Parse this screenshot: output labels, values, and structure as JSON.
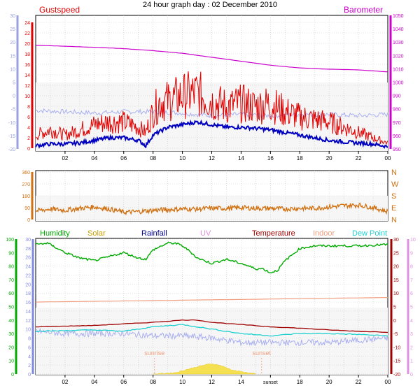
{
  "title": "24 hour graph day : 02 December 2010",
  "colors": {
    "gust": "#e00000",
    "wind": "#0000c0",
    "baro": "#cc00cc",
    "temp_trace": "#aab0f0",
    "dir": "#d07010",
    "humidity": "#00aa00",
    "solar": "#c8a000",
    "rainfall": "#000090",
    "uv": "#e090e0",
    "temperature": "#a00000",
    "indoor": "#f0a080",
    "dewpoint": "#20d0d0",
    "panel_bg": "#f6f6f6",
    "grid": "#c8c8c8"
  },
  "x_tick_labels": [
    "02",
    "04",
    "06",
    "08",
    "10",
    "12",
    "14",
    "16",
    "18",
    "20",
    "22",
    "00"
  ],
  "x_tick_labels_bottom": [
    "02",
    "04",
    "06",
    "08",
    "10",
    "12",
    "14",
    "sunset",
    "18",
    "20",
    "22",
    "00"
  ],
  "chart_data": [
    {
      "type": "line",
      "x_range_hours": [
        0,
        24
      ],
      "left_axis_label": "Gustspeed",
      "right_axis_label": "Barometer",
      "left_ticks": [
        "24",
        "22",
        "20",
        "18",
        "16",
        "14",
        "12",
        "10",
        "8",
        "6",
        "4",
        "2",
        "0"
      ],
      "left_outer_ticks": [
        "30",
        "25",
        "20",
        "15",
        "10",
        "5",
        "0",
        "-5",
        "-10",
        "-15",
        "-20"
      ],
      "right_ticks": [
        "1050",
        "1040",
        "1030",
        "1020",
        "1010",
        "1000",
        "990",
        "980",
        "970",
        "960",
        "950"
      ],
      "series": [
        {
          "name": "Barometer",
          "axis": "right",
          "x": [
            0,
            2,
            4,
            6,
            8,
            10,
            12,
            14,
            16,
            18,
            20,
            22,
            24
          ],
          "values": [
            1028,
            1027.3,
            1026.5,
            1025.5,
            1024,
            1022,
            1019,
            1016,
            1013,
            1011,
            1010,
            1009.5,
            1008
          ]
        },
        {
          "name": "Gustspeed",
          "axis": "left",
          "x": [
            0,
            1,
            2,
            3,
            4,
            5,
            6,
            7,
            7.5,
            8,
            8.5,
            9,
            10,
            11,
            12,
            13,
            14,
            15,
            16,
            17,
            18,
            19,
            20,
            21,
            22,
            23,
            24
          ],
          "values": [
            2.5,
            3.5,
            2.5,
            3.5,
            4.5,
            5,
            5,
            4,
            3,
            7,
            9,
            9,
            10,
            10.5,
            9,
            8,
            8.5,
            8,
            8.5,
            7,
            6,
            5.5,
            5,
            4,
            3,
            2,
            1
          ]
        },
        {
          "name": "Windspeed",
          "axis": "left",
          "x": [
            0,
            1,
            2,
            3,
            4,
            5,
            6,
            7,
            7.5,
            8,
            9,
            10,
            11,
            12,
            13,
            14,
            15,
            16,
            17,
            18,
            19,
            20,
            21,
            22,
            23,
            24
          ],
          "values": [
            0.5,
            0.8,
            0.8,
            1,
            1.5,
            2,
            2,
            1.5,
            0.5,
            2.5,
            4,
            4.5,
            5,
            4.5,
            4,
            4,
            3.8,
            3.5,
            3,
            2.5,
            2,
            1.5,
            1.2,
            1,
            0.8,
            0.3
          ]
        },
        {
          "name": "Temperature trace",
          "axis": "left_outer",
          "x": [
            0,
            2,
            4,
            6,
            8,
            10,
            12,
            14,
            16,
            18,
            20,
            22,
            24
          ],
          "values": [
            -5.5,
            -6,
            -6.5,
            -6,
            -6,
            -6.5,
            -7.5,
            -7,
            -7.5,
            -7,
            -7,
            -7.5,
            -7
          ]
        }
      ]
    },
    {
      "type": "line",
      "x_range_hours": [
        0,
        24
      ],
      "left_ticks": [
        "360",
        "270",
        "180",
        "90",
        "0"
      ],
      "right_labels": [
        "N",
        "W",
        "S",
        "E",
        "N"
      ],
      "series": [
        {
          "name": "Wind direction",
          "x": [
            0,
            1,
            2,
            3,
            4,
            5,
            6,
            7,
            8,
            9,
            10,
            11,
            12,
            13,
            14,
            15,
            16,
            17,
            18,
            19,
            20,
            21,
            22,
            23,
            24
          ],
          "values": [
            65,
            80,
            70,
            85,
            95,
            80,
            55,
            60,
            70,
            75,
            80,
            80,
            85,
            85,
            90,
            85,
            85,
            80,
            85,
            85,
            95,
            105,
            110,
            90,
            60
          ]
        }
      ]
    },
    {
      "type": "line",
      "x_range_hours": [
        0,
        24
      ],
      "legend": [
        "Humidity",
        "Solar",
        "Rainfall",
        "UV",
        "Temperature",
        "Indoor",
        "Dew Point"
      ],
      "humidity_ticks": [
        "100",
        "90",
        "80",
        "70",
        "60",
        "50",
        "40",
        "30",
        "20",
        "10",
        "0"
      ],
      "temp_ticks": [
        "30",
        "28",
        "26",
        "24",
        "22",
        "20",
        "18",
        "16",
        "14",
        "12",
        "10",
        "8",
        "6",
        "4",
        "2",
        "0"
      ],
      "right_temp_ticks": [
        "30",
        "25",
        "20",
        "15",
        "10",
        "5",
        "0",
        "-5",
        "-10",
        "-15",
        "-20"
      ],
      "uv_ticks": [
        "10",
        "9",
        "8",
        "7",
        "6",
        "5",
        "4",
        "3",
        "2",
        "1",
        "0"
      ],
      "sunrise_label": "sunrise",
      "sunset_label": "sunset",
      "sunrise_hour": 8.1,
      "sunset_hour": 15.4,
      "series": [
        {
          "name": "Humidity",
          "x": [
            0,
            0.8,
            1.5,
            2,
            3,
            3.5,
            4,
            5,
            6,
            7,
            7.5,
            8,
            9,
            9.5,
            10,
            10.5,
            11,
            12,
            13,
            14,
            15,
            15.5,
            16,
            16.5,
            17,
            18,
            19,
            20,
            22,
            24
          ],
          "values": [
            96,
            97,
            93,
            90,
            86,
            85,
            84,
            87,
            90,
            86,
            85,
            92,
            97,
            97,
            95,
            91,
            86,
            82,
            85,
            82,
            78,
            78,
            75,
            77,
            84,
            93,
            95,
            95,
            95,
            96
          ]
        },
        {
          "name": "Indoor",
          "axis": "temp",
          "x": [
            0,
            24
          ],
          "values": [
            16,
            17
          ]
        },
        {
          "name": "Temperature",
          "axis": "temp",
          "x": [
            0,
            4,
            8,
            10,
            11,
            12,
            14,
            16,
            18,
            20,
            22,
            24
          ],
          "values": [
            10.5,
            10.8,
            11.5,
            12,
            12,
            11.5,
            11,
            10.5,
            10.2,
            9.8,
            9.5,
            9.3
          ]
        },
        {
          "name": "Dew Point",
          "axis": "temp",
          "x": [
            0,
            4,
            6,
            8,
            10,
            11,
            12,
            14,
            16,
            18,
            20,
            22,
            24
          ],
          "values": [
            9.5,
            9.8,
            9.5,
            10.5,
            11,
            10.5,
            10,
            9,
            8.5,
            9,
            9,
            8.8,
            8.5
          ]
        },
        {
          "name": "Temperature trace",
          "axis": "temp",
          "x": [
            0,
            2,
            4,
            6,
            8,
            10,
            12,
            14,
            16,
            18,
            20,
            22,
            24
          ],
          "values": [
            9.5,
            9,
            9,
            9,
            8.5,
            8.5,
            8,
            7,
            7,
            7,
            7,
            7.5,
            8
          ]
        },
        {
          "name": "Solar",
          "axis": "temp",
          "x": [
            8,
            9.5,
            10.5,
            11.5,
            12,
            12.5,
            13.5,
            15
          ],
          "values": [
            0,
            0.3,
            1.2,
            2,
            2.3,
            2,
            0.8,
            0
          ]
        }
      ]
    }
  ]
}
